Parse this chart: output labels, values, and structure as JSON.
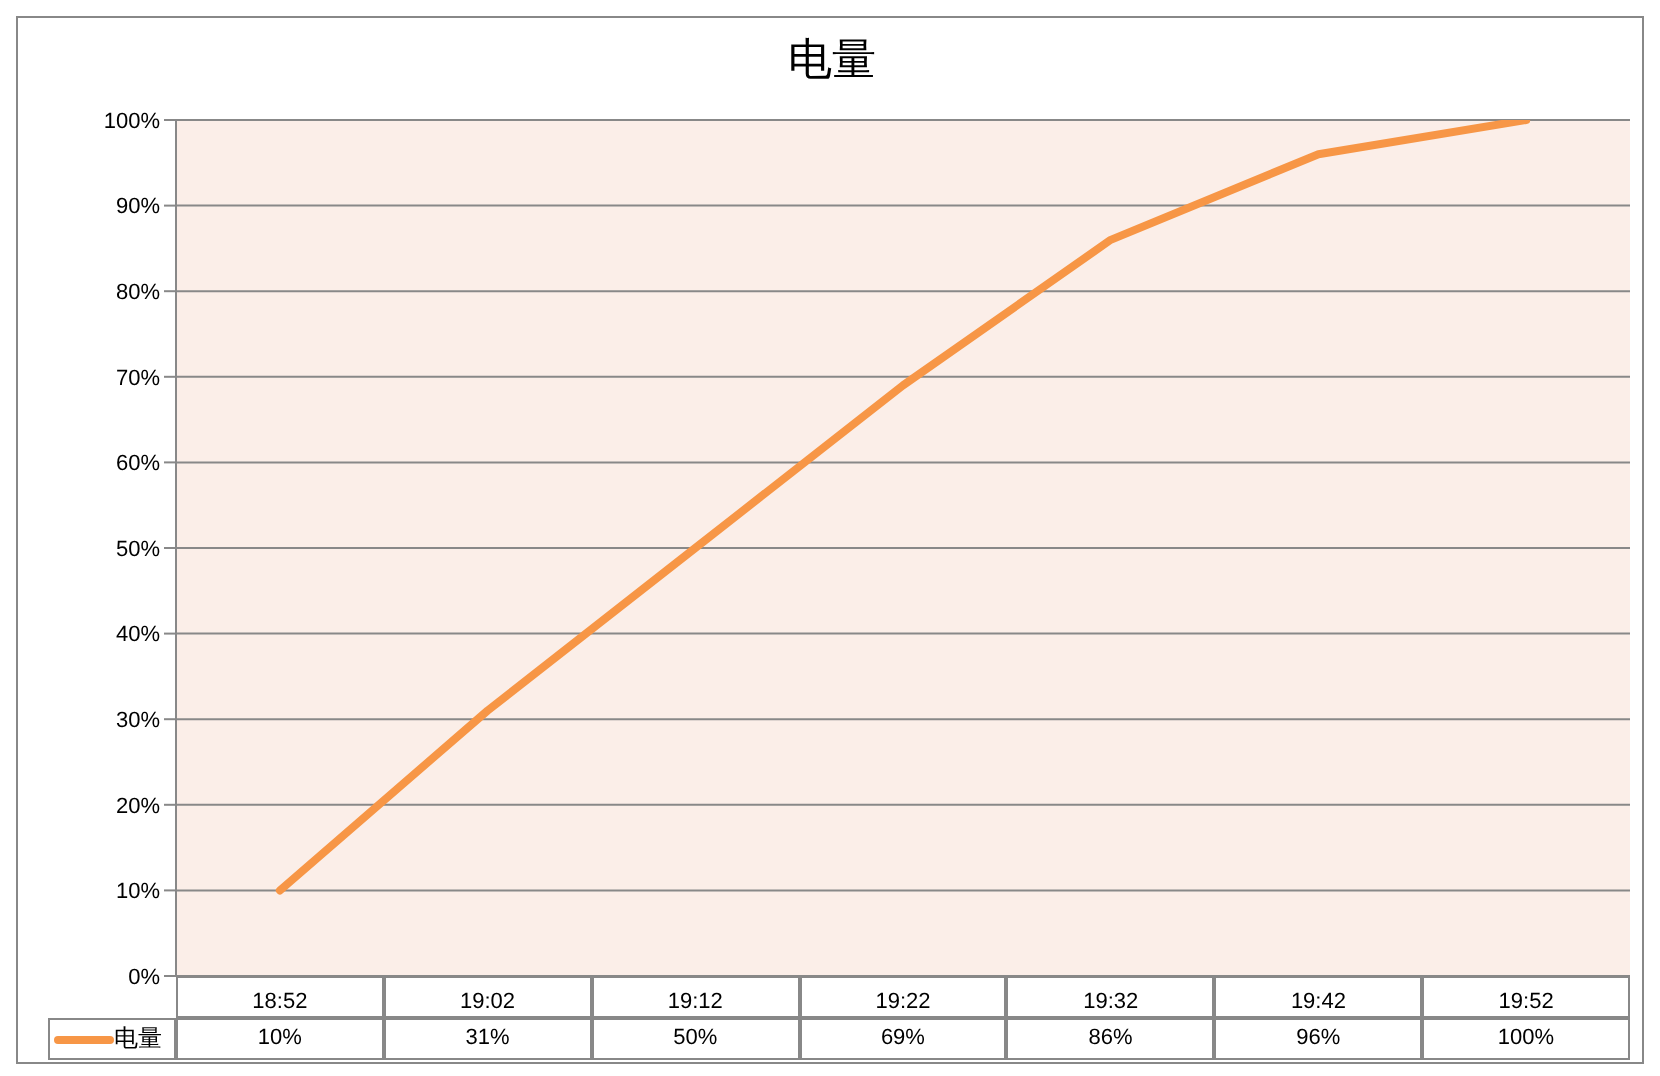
{
  "chart_data": {
    "type": "line",
    "title": "电量",
    "categories": [
      "18:52",
      "19:02",
      "19:12",
      "19:22",
      "19:32",
      "19:42",
      "19:52"
    ],
    "series": [
      {
        "name": "电量",
        "color": "#f79646",
        "values": [
          10,
          31,
          50,
          69,
          86,
          96,
          100
        ],
        "value_labels": [
          "10%",
          "31%",
          "50%",
          "69%",
          "86%",
          "96%",
          "100%"
        ]
      }
    ],
    "ylim": [
      0,
      100
    ],
    "yticks": [
      {
        "value": 0,
        "label": "0%"
      },
      {
        "value": 10,
        "label": "10%"
      },
      {
        "value": 20,
        "label": "20%"
      },
      {
        "value": 30,
        "label": "30%"
      },
      {
        "value": 40,
        "label": "40%"
      },
      {
        "value": 50,
        "label": "50%"
      },
      {
        "value": 60,
        "label": "60%"
      },
      {
        "value": 70,
        "label": "70%"
      },
      {
        "value": 80,
        "label": "80%"
      },
      {
        "value": 90,
        "label": "90%"
      },
      {
        "value": 100,
        "label": "100%"
      }
    ],
    "grid": "y",
    "legend": "bottom",
    "marker": "none",
    "line_style": "solid"
  }
}
